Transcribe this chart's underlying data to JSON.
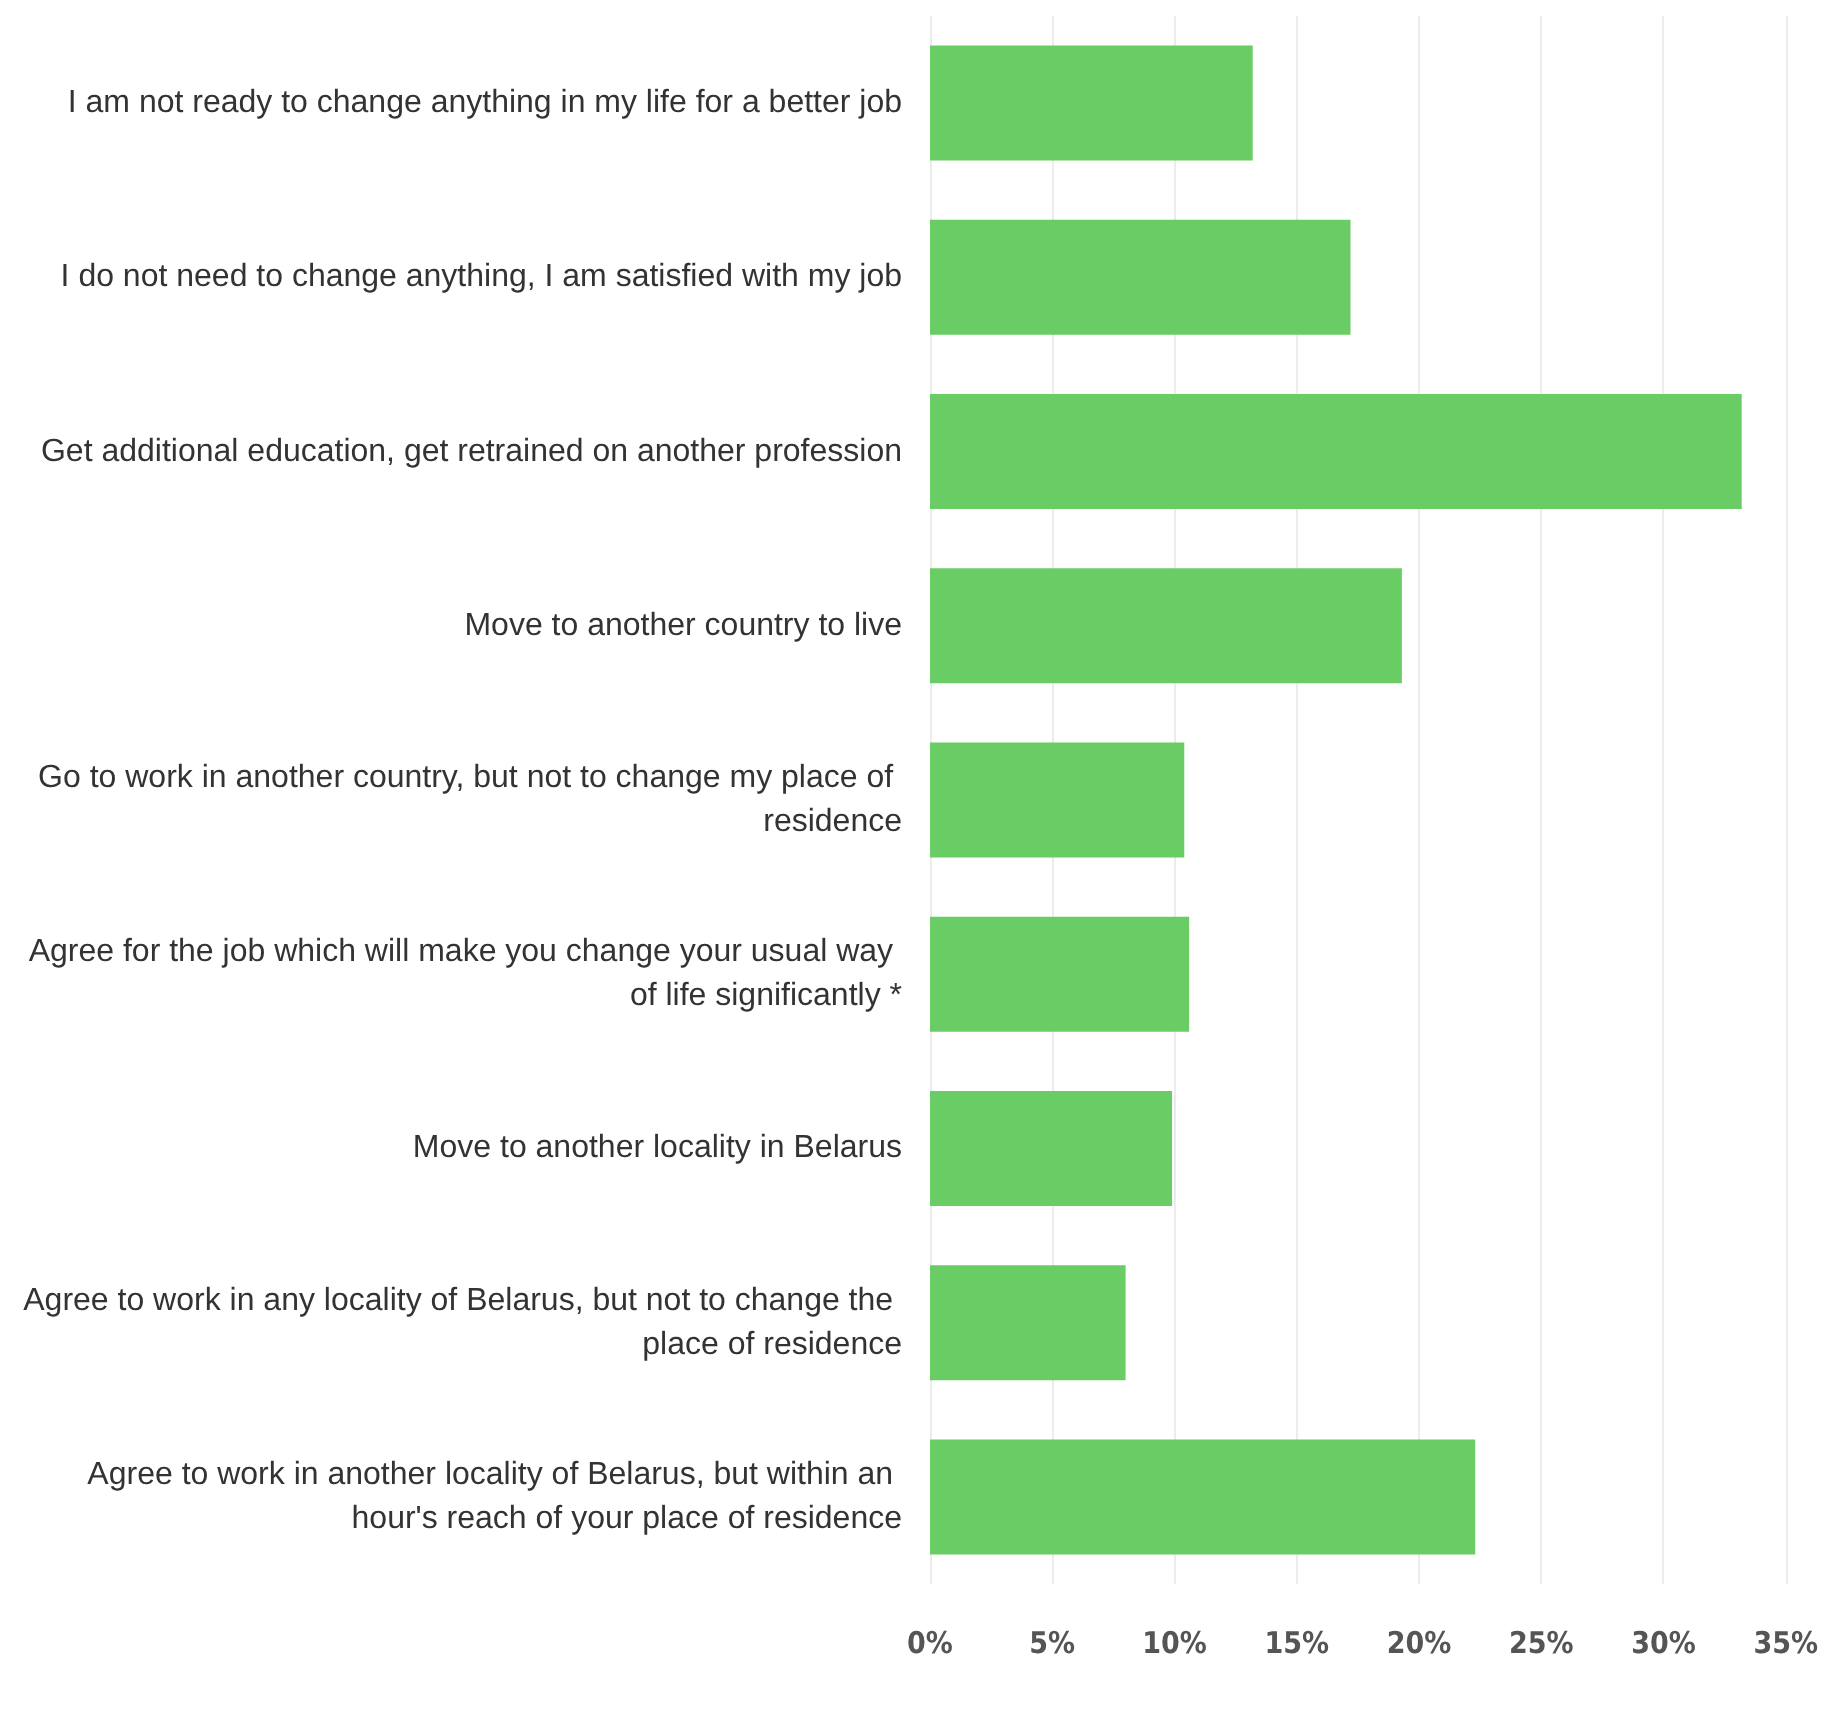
{
  "chart_data": {
    "type": "bar",
    "orientation": "horizontal",
    "categories": [
      "I am not ready to change anything in my life for a better job",
      "I do not need to change anything, I am satisfied with my job",
      "Get additional education, get retrained on another profession",
      "Move to another country to live",
      "Go to work in another country, but not to change my place of residence",
      "Agree for the job which will make you change your usual way of life significantly *",
      "Move to another locality in Belarus",
      "Agree to work in any locality of Belarus, but not to change the place of residence",
      "Agree to work in another locality of Belarus, but within an hour's reach of your place of residence"
    ],
    "values": [
      13.2,
      17.2,
      33.2,
      19.3,
      10.4,
      10.6,
      9.9,
      8.0,
      22.3
    ],
    "color": "#6acc64",
    "xlim": [
      0,
      35
    ],
    "xticks": [
      {
        "value": 0,
        "label": "0%"
      },
      {
        "value": 5,
        "label": "5%"
      },
      {
        "value": 10,
        "label": "10%"
      },
      {
        "value": 15,
        "label": "15%"
      },
      {
        "value": 20,
        "label": "20%"
      },
      {
        "value": 25,
        "label": "25%"
      },
      {
        "value": 30,
        "label": "30%"
      },
      {
        "value": 35,
        "label": "35%"
      }
    ],
    "grid": "x"
  }
}
